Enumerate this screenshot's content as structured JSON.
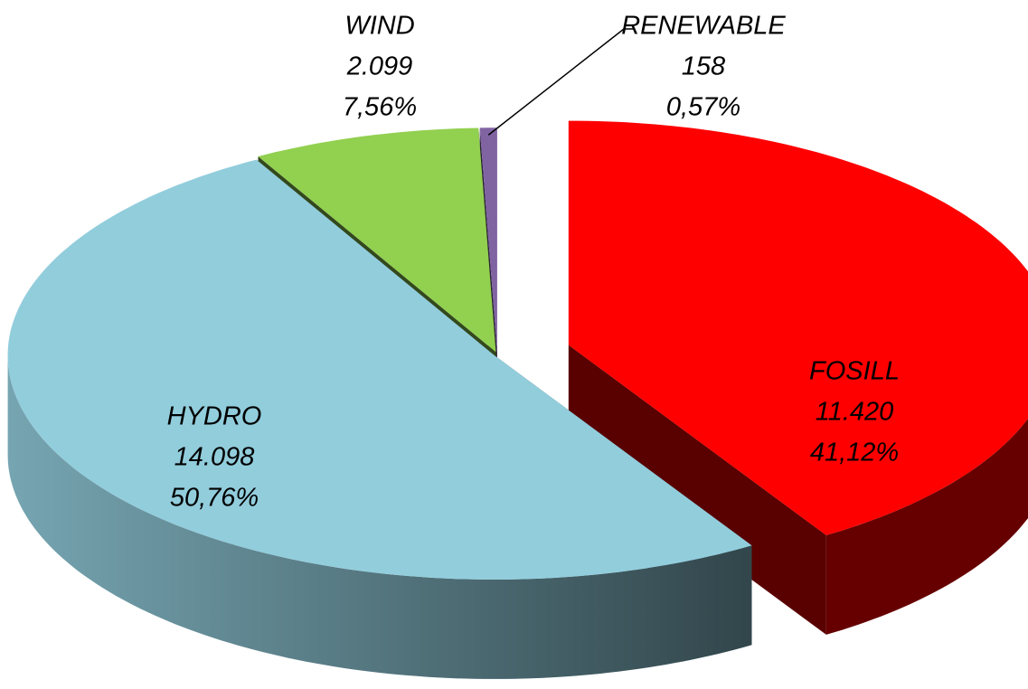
{
  "chart_data": {
    "type": "pie3d",
    "categories": [
      "FOSILL",
      "HYDRO",
      "WIND",
      "RENEWABLE"
    ],
    "values": [
      11420,
      14098,
      2099,
      158
    ],
    "value_labels": [
      "11.420",
      "14.098",
      "2.099",
      "158"
    ],
    "percent_labels": [
      "41,12%",
      "50,76%",
      "7,56%",
      "0,57%"
    ],
    "colors": [
      "#ff0000",
      "#92cddc",
      "#92d050",
      "#8064a2"
    ]
  }
}
